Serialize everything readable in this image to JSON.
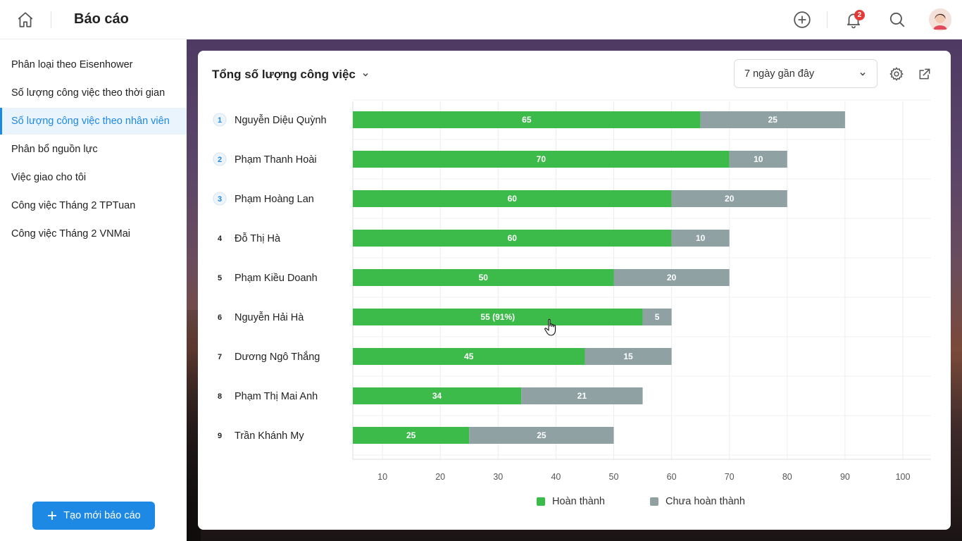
{
  "header": {
    "title": "Báo cáo",
    "notification_count": "2"
  },
  "sidebar": {
    "items": [
      {
        "label": "Phân loại theo Eisenhower"
      },
      {
        "label": "Số lượng công việc theo thời gian"
      },
      {
        "label": "Số lượng công việc theo nhân viên"
      },
      {
        "label": "Phân bổ nguồn lực"
      },
      {
        "label": "Việc giao cho tôi"
      },
      {
        "label": "Công việc Tháng 2 TPTuan"
      },
      {
        "label": "Công việc Tháng 2 VNMai"
      }
    ],
    "active_index": 2,
    "new_report_label": "Tạo mới báo cáo"
  },
  "card": {
    "title": "Tổng số lượng công việc",
    "range_value": "7 ngày gần đây"
  },
  "colors": {
    "accent": "#1e88e5",
    "completed": "#3cba4a",
    "incomplete": "#8fa1a3"
  },
  "chart_data": {
    "type": "bar",
    "orientation": "horizontal",
    "stacked": true,
    "categories": [
      "Nguyễn Diệu Quỳnh",
      "Phạm Thanh Hoài",
      "Phạm Hoàng Lan",
      "Đỗ Thị Hà",
      "Phạm Kiều Doanh",
      "Nguyễn Hải Hà",
      "Dương Ngô Thắng",
      "Phạm Thị Mai Anh",
      "Trần Khánh My"
    ],
    "ranks": [
      "1",
      "2",
      "3",
      "4",
      "5",
      "6",
      "7",
      "8",
      "9"
    ],
    "series": [
      {
        "name": "Hoàn thành",
        "values": [
          65,
          70,
          60,
          60,
          50,
          55,
          45,
          34,
          25
        ]
      },
      {
        "name": "Chưa hoàn thành",
        "values": [
          25,
          10,
          20,
          10,
          20,
          5,
          15,
          21,
          25
        ]
      }
    ],
    "bar_labels": {
      "Hoàn thành": [
        "65",
        "70",
        "60",
        "60",
        "50",
        "55 (91%)",
        "45",
        "34",
        "25"
      ],
      "Chưa hoàn thành": [
        "25",
        "10",
        "20",
        "10",
        "20",
        "5",
        "15",
        "21",
        "25"
      ]
    },
    "x_ticks": [
      "10",
      "20",
      "30",
      "40",
      "50",
      "60",
      "70",
      "80",
      "90",
      "100"
    ],
    "xlim": [
      0,
      100
    ],
    "grid": true,
    "legend": [
      "Hoàn thành",
      "Chưa hoàn thành"
    ],
    "legend_position": "bottom-center"
  }
}
